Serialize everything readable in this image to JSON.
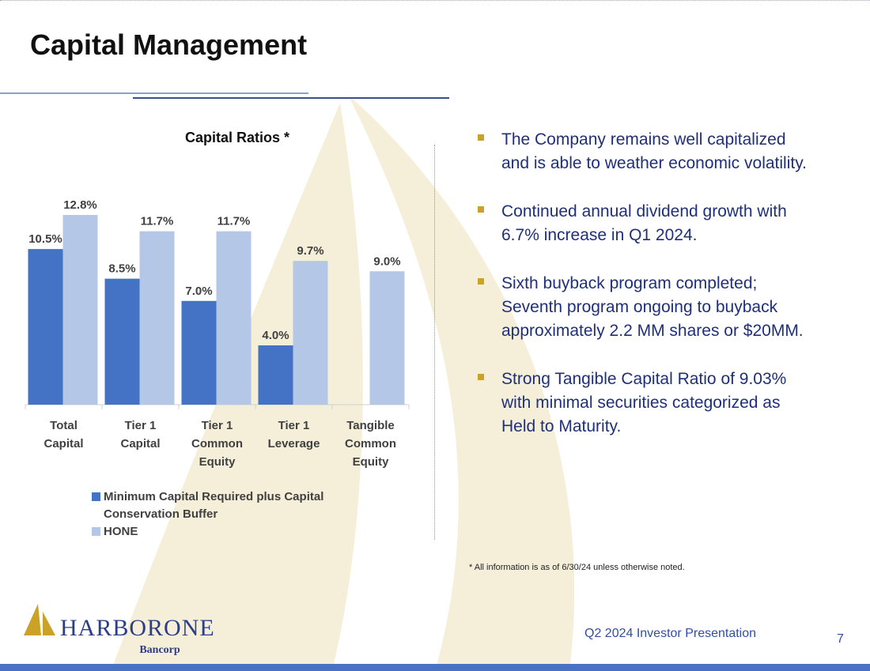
{
  "page": {
    "title": "Capital Management",
    "footer_label": "Q2 2024 Investor Presentation",
    "page_number": "7",
    "footnote": "* All information is as of 6/30/24 unless otherwise noted."
  },
  "logo": {
    "name": "HARBORONE",
    "sub": "Bancorp"
  },
  "bullets": [
    "The Company remains well capitalized and is able to weather economic volatility.",
    "Continued annual dividend growth with 6.7% increase in Q1 2024.",
    "Sixth buyback program completed; Seventh program ongoing to buyback approximately 2.2 MM shares or $20MM.",
    "Strong Tangible Capital Ratio of 9.03% with minimal securities categorized as Held to Maturity."
  ],
  "colors": {
    "series_min": "#4472c4",
    "series_hone": "#b4c7e7",
    "bullet": "#c9a227",
    "text_blue": "#1f2f7a"
  },
  "chart_data": {
    "type": "bar",
    "title": "Capital Ratios *",
    "categories": [
      [
        "Total",
        "Capital"
      ],
      [
        "Tier 1",
        "Capital"
      ],
      [
        "Tier 1",
        "Common",
        "Equity"
      ],
      [
        "Tier 1",
        "Leverage"
      ],
      [
        "Tangible",
        "Common",
        "Equity"
      ]
    ],
    "series": [
      {
        "name": "Minimum Capital Required plus Capital Conservation Buffer",
        "values": [
          10.5,
          8.5,
          7.0,
          4.0,
          null
        ],
        "labels": [
          "10.5%",
          "8.5%",
          "7.0%",
          "4.0%",
          ""
        ]
      },
      {
        "name": "HONE",
        "values": [
          12.8,
          11.7,
          11.7,
          9.7,
          9.0
        ],
        "labels": [
          "12.8%",
          "11.7%",
          "11.7%",
          "9.7%",
          "9.0%"
        ]
      }
    ],
    "ylim": [
      0,
      13.5
    ],
    "xlabel": "",
    "ylabel": "",
    "legend_position": "bottom"
  }
}
